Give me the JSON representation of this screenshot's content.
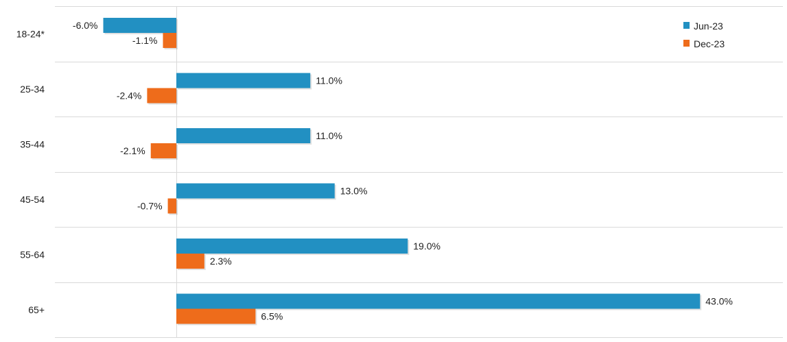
{
  "chart_data": {
    "type": "bar",
    "orientation": "horizontal",
    "categories": [
      "18-24*",
      "25-34",
      "35-44",
      "45-54",
      "55-64",
      "65+"
    ],
    "series": [
      {
        "name": "Jun-23",
        "color": "#2290c2",
        "values": [
          -6.0,
          11.0,
          11.0,
          13.0,
          19.0,
          43.0
        ],
        "labels": [
          "-6.0%",
          "11.0%",
          "11.0%",
          "13.0%",
          "19.0%",
          "43.0%"
        ]
      },
      {
        "name": "Dec-23",
        "color": "#ee6c1b",
        "values": [
          -1.1,
          -2.4,
          -2.1,
          -0.7,
          2.3,
          6.5
        ],
        "labels": [
          "-1.1%",
          "-2.4%",
          "-2.1%",
          "-0.7%",
          "2.3%",
          "6.5%"
        ]
      }
    ],
    "xlim": [
      -14.5,
      48.5
    ],
    "grid": true,
    "legend_position": "top-right",
    "title": "",
    "xlabel": "",
    "ylabel": ""
  }
}
